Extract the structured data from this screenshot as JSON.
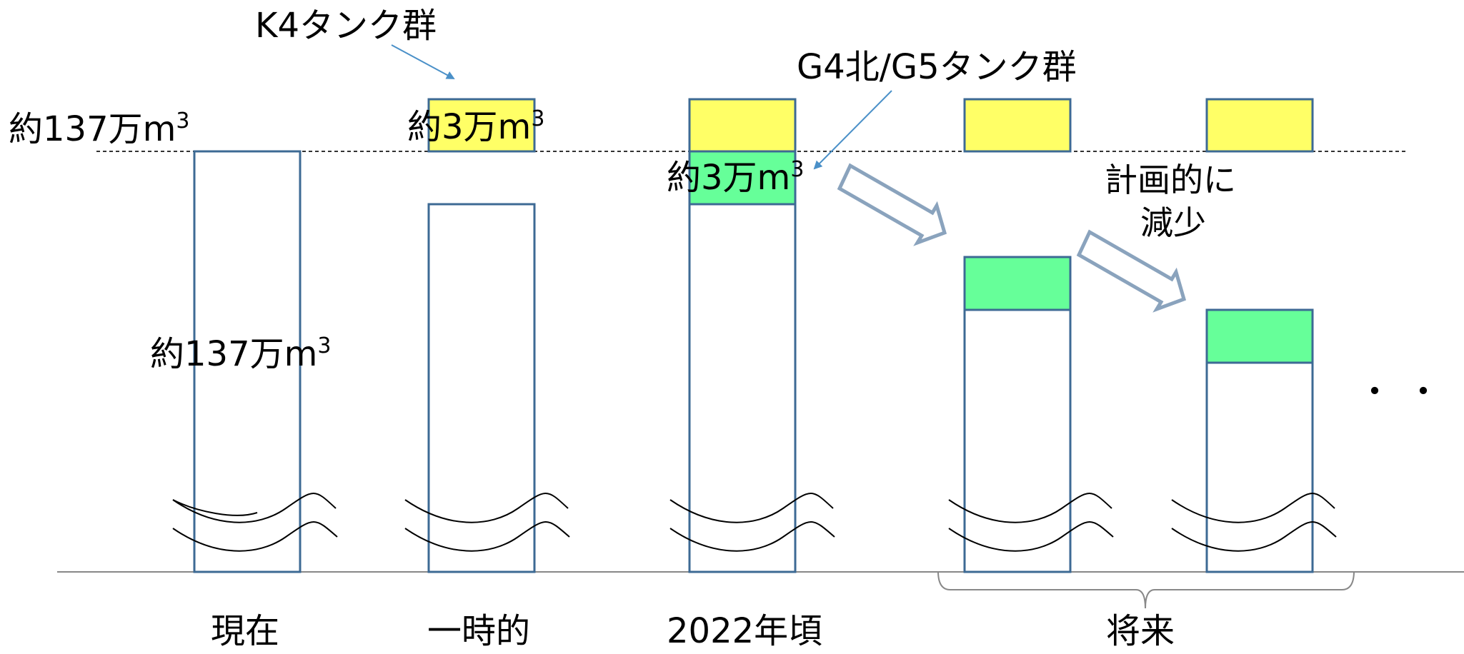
{
  "labels": {
    "level_left_prefix": "約137万m",
    "level_left_sup": "3",
    "bar_inner_prefix": "約137万m",
    "bar_inner_sup": "3",
    "k4_group": "K4タンク群",
    "k4_amount_prefix": "約3万m",
    "k4_amount_sup": "3",
    "g4g5_group": "G4北/G5タンク群",
    "g4g5_amount_prefix": "約3万m",
    "g4g5_amount_sup": "3",
    "planned_line1": "計画的に",
    "planned_line2": "減少",
    "ellipsis": "・・・"
  },
  "categories": {
    "current": "現在",
    "temporary": "一時的",
    "y2022": "2022年頃",
    "future": "将来"
  },
  "colors": {
    "bar_outline": "#3d6a94",
    "k4_fill": "#ffff66",
    "g_fill": "#66ff99",
    "arrow_outline": "#8aa3bd",
    "pointer": "#4a90c8",
    "baseline": "#888888",
    "dash_line": "#333333"
  }
}
